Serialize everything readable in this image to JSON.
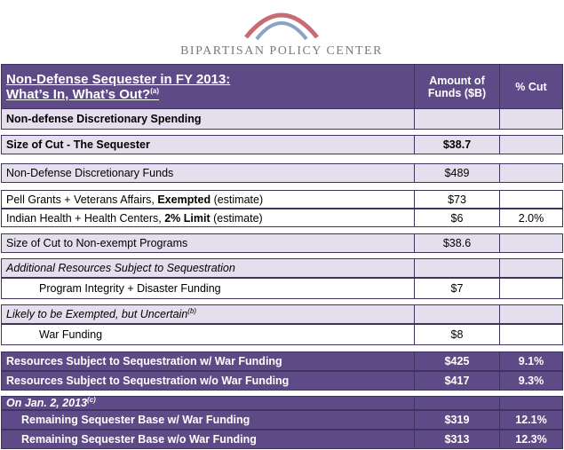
{
  "header": {
    "organization": "BIPARTISAN POLICY CENTER"
  },
  "table": {
    "title": [
      "Non-Defense Sequester in FY 2013:",
      "What’s In, What’s Out?"
    ],
    "title_note": "(a)",
    "columns": [
      "Amount of Funds ($B)",
      "% Cut"
    ],
    "rows": [
      {
        "label": "Non-defense Discretionary Spending"
      },
      {
        "label": "Size of Cut - The Sequester",
        "amount": "$38.7"
      },
      {
        "label": "Non-Defense Discretionary Funds",
        "amount": "$489"
      },
      {
        "label": [
          "Pell Grants + Veterans Affairs, ",
          "Exempted",
          " (estimate)"
        ],
        "amount": "$73"
      },
      {
        "label": [
          "Indian Health + Health Centers, ",
          "2% Limit",
          " (estimate)"
        ],
        "amount": "$6",
        "cut": "2.0%"
      },
      {
        "label": "Size of Cut to Non-exempt Programs",
        "amount": "$38.6"
      },
      {
        "label": "Additional Resources Subject to Sequestration"
      },
      {
        "label": "Program Integrity + Disaster Funding",
        "amount": "$7"
      },
      {
        "label": "Likely to be Exempted, but Uncertain",
        "note": "(b)"
      },
      {
        "label": "War Funding",
        "amount": "$8"
      },
      {
        "label": "Resources Subject to Sequestration w/ War Funding",
        "amount": "$425",
        "cut": "9.1%"
      },
      {
        "label": "Resources Subject to Sequestration w/o War Funding",
        "amount": "$417",
        "cut": "9.3%"
      },
      {
        "label": "On Jan. 2, 2013",
        "note": "(c)"
      },
      {
        "label": "Remaining Sequester Base w/ War Funding",
        "amount": "$319",
        "cut": "12.1%"
      },
      {
        "label": "Remaining Sequester Base w/o War Funding",
        "amount": "$313",
        "cut": "12.3%"
      }
    ]
  }
}
